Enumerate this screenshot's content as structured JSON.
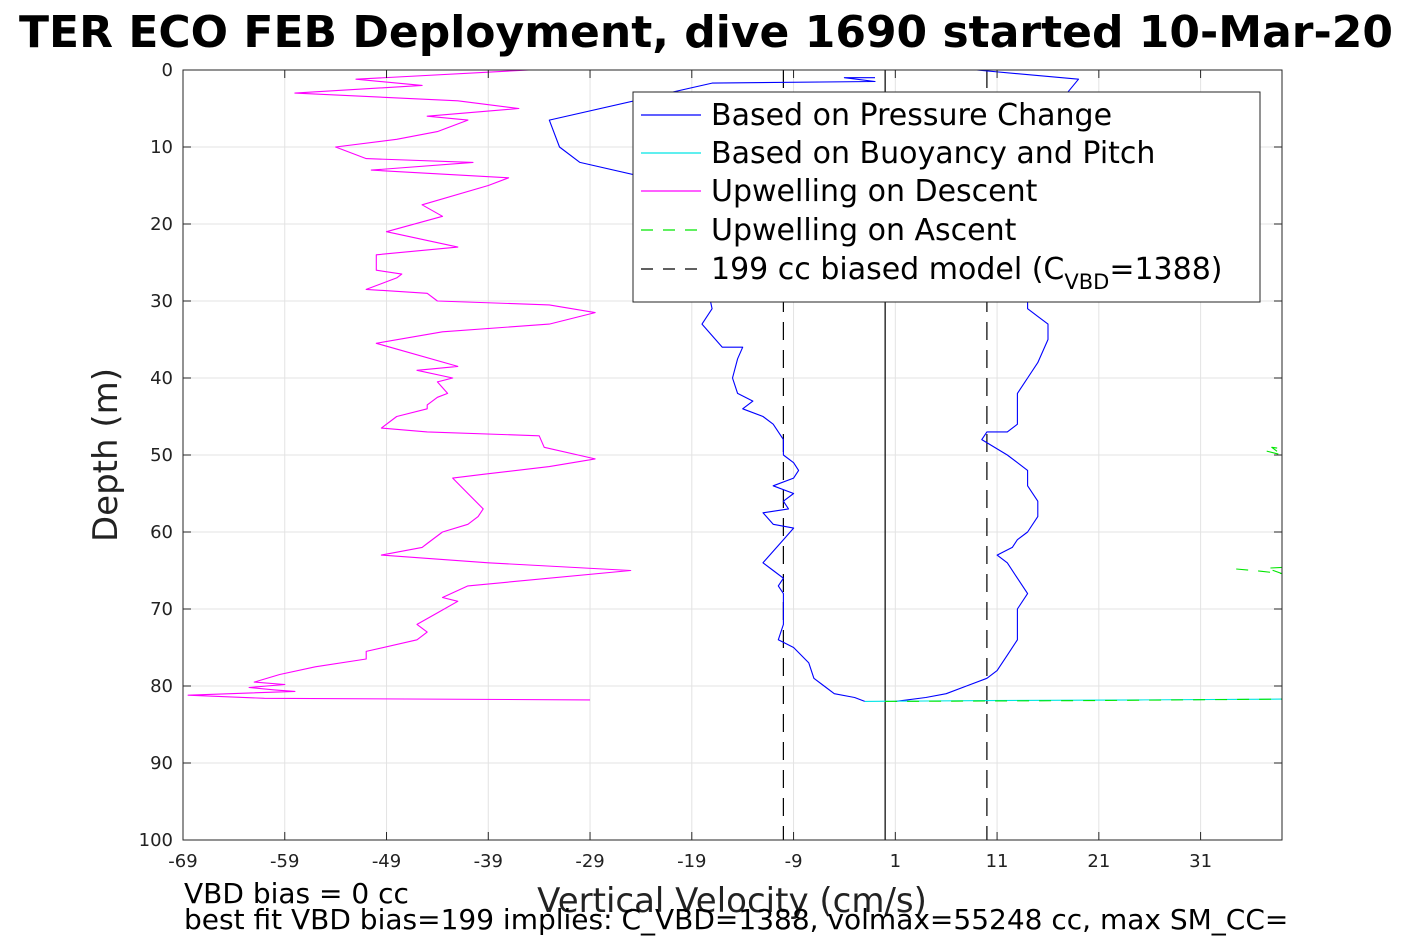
{
  "chart_data": {
    "type": "line",
    "title": "TER ECO FEB Deployment, dive 1690 started 10-Mar-20",
    "xlabel": "Vertical Velocity (cm/s)",
    "ylabel": "Depth (m)",
    "xlim": [
      -69,
      39
    ],
    "ylim": [
      0,
      100
    ],
    "y_reversed": true,
    "grid": true,
    "legend_position": "top-right",
    "x_ticks": [
      -69,
      -59,
      -49,
      -39,
      -29,
      -19,
      -9,
      1,
      11,
      21,
      31
    ],
    "y_ticks": [
      0,
      10,
      20,
      30,
      40,
      50,
      60,
      70,
      80,
      90,
      100
    ],
    "legend": {
      "pressure": "Based on Pressure Change",
      "buoyancy": "Based on Buoyancy and Pitch",
      "descent": "Upwelling on Descent",
      "ascent": "Upwelling on Ascent",
      "model_main": "199 cc biased model (C",
      "model_sub": "VBD",
      "model_tail": "=1388)"
    },
    "colors": {
      "pressure": "#0000ff",
      "buoyancy": "#00e5e5",
      "descent": "#ff00ff",
      "ascent": "#00e600",
      "model": "#000000"
    },
    "model_lines": [
      {
        "x": 0,
        "style": "solid"
      },
      {
        "x": -10,
        "style": "dashed"
      },
      {
        "x": 10,
        "style": "dashed"
      }
    ],
    "series": [
      {
        "key": "pressure_descent",
        "style": "solid",
        "color": "#0000ff",
        "points": [
          [
            -1,
            1
          ],
          [
            -4,
            1
          ],
          [
            -1,
            1.5
          ],
          [
            -17,
            1.7
          ],
          [
            -33,
            6.5
          ],
          [
            -32,
            10
          ],
          [
            -30,
            12
          ],
          [
            -20,
            15
          ],
          [
            -18,
            25
          ],
          [
            -17,
            31
          ],
          [
            -18,
            33
          ],
          [
            -16,
            36
          ],
          [
            -14,
            36
          ],
          [
            -14.5,
            37.5
          ],
          [
            -15,
            40
          ],
          [
            -14.5,
            42
          ],
          [
            -13,
            43
          ],
          [
            -14,
            44
          ],
          [
            -12,
            45
          ],
          [
            -11,
            46
          ],
          [
            -10,
            48
          ],
          [
            -10,
            50
          ],
          [
            -9,
            51
          ],
          [
            -8.5,
            52
          ],
          [
            -9,
            53
          ],
          [
            -11,
            54
          ],
          [
            -9,
            55
          ],
          [
            -10,
            56
          ],
          [
            -9.5,
            57
          ],
          [
            -12,
            57.5
          ],
          [
            -11,
            59
          ],
          [
            -9,
            59.5
          ],
          [
            -10,
            61
          ],
          [
            -11,
            62.5
          ],
          [
            -12,
            64
          ],
          [
            -11,
            65
          ],
          [
            -10,
            66
          ],
          [
            -10.5,
            67
          ],
          [
            -10,
            68
          ],
          [
            -10,
            70
          ],
          [
            -10,
            72
          ],
          [
            -10.5,
            74
          ],
          [
            -9,
            75
          ],
          [
            -7.5,
            77
          ],
          [
            -7,
            79
          ],
          [
            -6,
            80
          ],
          [
            -5,
            81
          ],
          [
            -3,
            81.5
          ],
          [
            -2,
            82
          ]
        ]
      },
      {
        "key": "pressure_ascent",
        "style": "solid",
        "color": "#0000ff",
        "points": [
          [
            5,
            0
          ],
          [
            9,
            0
          ],
          [
            19,
            1.2
          ],
          [
            16,
            6
          ],
          [
            15,
            15
          ],
          [
            14,
            28
          ],
          [
            14,
            31
          ],
          [
            15,
            32
          ],
          [
            16,
            33
          ],
          [
            16,
            35
          ],
          [
            15,
            38
          ],
          [
            14,
            40
          ],
          [
            13,
            42
          ],
          [
            13,
            44
          ],
          [
            13,
            46
          ],
          [
            12,
            47
          ],
          [
            10,
            47
          ],
          [
            9.5,
            48
          ],
          [
            12,
            50
          ],
          [
            14,
            52
          ],
          [
            14,
            54
          ],
          [
            15,
            56
          ],
          [
            15,
            58
          ],
          [
            14,
            60
          ],
          [
            13,
            61
          ],
          [
            12.5,
            62
          ],
          [
            11,
            63
          ],
          [
            12,
            64
          ],
          [
            13,
            66
          ],
          [
            14,
            68
          ],
          [
            13,
            70
          ],
          [
            13,
            72
          ],
          [
            13,
            74
          ],
          [
            12,
            76
          ],
          [
            11,
            78
          ],
          [
            10,
            79
          ],
          [
            8,
            80
          ],
          [
            6,
            81
          ],
          [
            4,
            81.5
          ],
          [
            1,
            82
          ]
        ]
      },
      {
        "key": "buoyancy_curve",
        "style": "solid",
        "color": "#00e5e5",
        "points": [
          [
            -2,
            82
          ],
          [
            10,
            81.9
          ],
          [
            25,
            81.8
          ],
          [
            39,
            81.7
          ]
        ]
      },
      {
        "key": "buoyancy_top",
        "style": "solid",
        "color": "#00e5e5",
        "points": [
          [
            26.5,
            0
          ],
          [
            39,
            0
          ]
        ]
      },
      {
        "key": "descent",
        "style": "solid",
        "color": "#ff00ff",
        "points": [
          [
            -35,
            0
          ],
          [
            -52,
            1.2
          ],
          [
            -45.5,
            2
          ],
          [
            -58,
            3
          ],
          [
            -42,
            4
          ],
          [
            -36,
            5
          ],
          [
            -45,
            6
          ],
          [
            -41,
            6.5
          ],
          [
            -44,
            8
          ],
          [
            -46,
            8.5
          ],
          [
            -48,
            9
          ],
          [
            -54,
            10
          ],
          [
            -51,
            11.5
          ],
          [
            -40.5,
            12
          ],
          [
            -50.5,
            13
          ],
          [
            -37,
            14
          ],
          [
            -39,
            15
          ],
          [
            -45.5,
            17.5
          ],
          [
            -43.5,
            19
          ],
          [
            -49,
            21
          ],
          [
            -42,
            23
          ],
          [
            -50,
            24
          ],
          [
            -50,
            26
          ],
          [
            -47.5,
            26.5
          ],
          [
            -48,
            27
          ],
          [
            -51,
            28.5
          ],
          [
            -45,
            29
          ],
          [
            -44,
            30
          ],
          [
            -33,
            30.5
          ],
          [
            -28.5,
            31.5
          ],
          [
            -33,
            33
          ],
          [
            -43.5,
            34
          ],
          [
            -50,
            35.5
          ],
          [
            -42,
            38.5
          ],
          [
            -46,
            39
          ],
          [
            -42.5,
            40
          ],
          [
            -44,
            40.5
          ],
          [
            -43,
            42
          ],
          [
            -44,
            42.5
          ],
          [
            -45,
            43.5
          ],
          [
            -45,
            44
          ],
          [
            -48,
            45
          ],
          [
            -49.5,
            46.5
          ],
          [
            -45,
            47
          ],
          [
            -34,
            47.5
          ],
          [
            -33.5,
            49
          ],
          [
            -28.5,
            50.5
          ],
          [
            -33,
            51.5
          ],
          [
            -39.5,
            52.5
          ],
          [
            -42.5,
            53
          ],
          [
            -41,
            55
          ],
          [
            -39.5,
            57
          ],
          [
            -40,
            58
          ],
          [
            -41,
            59
          ],
          [
            -43.5,
            60
          ],
          [
            -45,
            61.5
          ],
          [
            -45.5,
            62
          ],
          [
            -49.5,
            63
          ],
          [
            -39,
            64
          ],
          [
            -25,
            65
          ],
          [
            -41,
            67
          ],
          [
            -43.5,
            68.5
          ],
          [
            -42,
            69
          ],
          [
            -44,
            70.5
          ],
          [
            -46,
            72
          ],
          [
            -45,
            73
          ],
          [
            -46,
            74
          ],
          [
            -51,
            75.5
          ],
          [
            -51,
            76.5
          ],
          [
            -56,
            77.5
          ],
          [
            -59.5,
            78.5
          ],
          [
            -62,
            79.5
          ],
          [
            -59,
            79.8
          ],
          [
            -62.5,
            80.2
          ],
          [
            -60,
            80.5
          ],
          [
            -58,
            80.7
          ],
          [
            -68.5,
            81.2
          ],
          [
            -61,
            81.6
          ],
          [
            -29,
            81.8
          ]
        ]
      },
      {
        "key": "ascent_bottom",
        "style": "dashed",
        "color": "#00e600",
        "points": [
          [
            0,
            82
          ],
          [
            20,
            81.9
          ],
          [
            39,
            81.7
          ]
        ]
      },
      {
        "key": "ascent_top",
        "style": "dashed",
        "color": "#00e600",
        "points": [
          [
            26,
            0
          ],
          [
            39,
            0
          ]
        ]
      },
      {
        "key": "ascent_50",
        "style": "dashed",
        "color": "#00e600",
        "points": [
          [
            37.5,
            49.5
          ],
          [
            39,
            50
          ],
          [
            38,
            49
          ],
          [
            39,
            49.2
          ]
        ]
      },
      {
        "key": "ascent_65",
        "style": "dashed",
        "color": "#00e600",
        "points": [
          [
            34.5,
            64.8
          ],
          [
            37,
            65.1
          ],
          [
            39,
            65.4
          ],
          [
            37.5,
            64.7
          ],
          [
            39,
            64.6
          ]
        ]
      }
    ],
    "footer_line1": "VBD bias = 0 cc",
    "footer_line2": "best fit VBD bias=199 implies: C_VBD=1388, volmax=55248 cc, max SM_CC="
  }
}
